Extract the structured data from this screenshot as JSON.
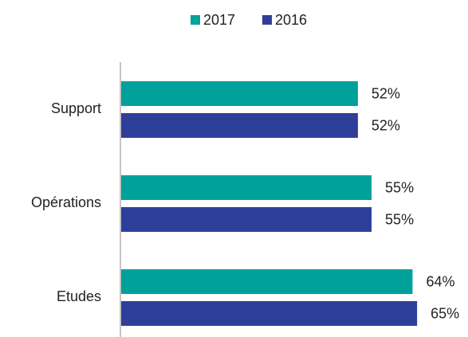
{
  "chart_data": {
    "type": "bar",
    "orientation": "horizontal",
    "categories": [
      "Support",
      "Opérations",
      "Etudes"
    ],
    "series": [
      {
        "name": "2017",
        "color": "#00a19a",
        "values": [
          52,
          55,
          64
        ],
        "value_labels": [
          "52%",
          "55%",
          "64%"
        ]
      },
      {
        "name": "2016",
        "color": "#2e3f9a",
        "values": [
          52,
          55,
          65
        ],
        "value_labels": [
          "52%",
          "55%",
          "65%"
        ]
      }
    ],
    "xlim": [
      0,
      100
    ],
    "legend": "top"
  }
}
